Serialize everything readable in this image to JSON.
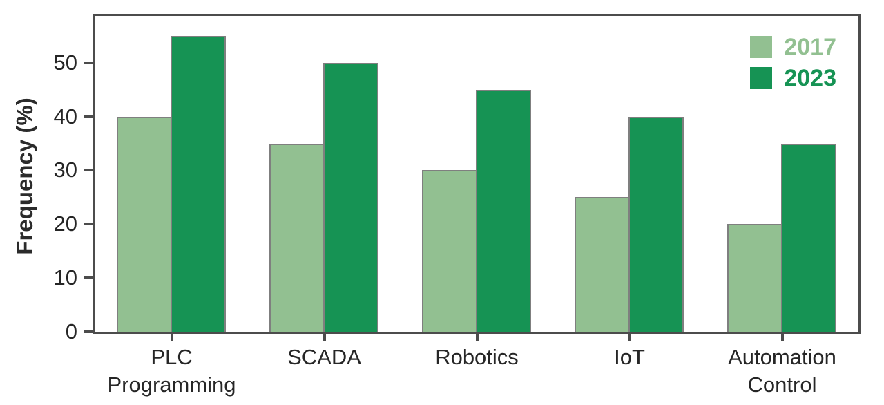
{
  "chart_data": {
    "type": "bar",
    "title": "",
    "categories": [
      "PLC\nProgramming",
      "SCADA",
      "Robotics",
      "IoT",
      "Automation\nControl"
    ],
    "series": [
      {
        "name": "2017",
        "values": [
          40,
          35,
          30,
          25,
          20
        ],
        "color": "#92c091"
      },
      {
        "name": "2023",
        "values": [
          55,
          50,
          45,
          40,
          35
        ],
        "color": "#169354"
      }
    ],
    "xlabel": "",
    "ylabel": "Frequency (%)",
    "yticks": [
      0,
      10,
      20,
      30,
      40,
      50
    ],
    "ylim": [
      0,
      58.7
    ],
    "grid": false,
    "legend_position": "top-right",
    "bar_outline_color": "#7f7f7f",
    "axis_color": "#4c4c4c",
    "tick_text_color": "#262626"
  }
}
